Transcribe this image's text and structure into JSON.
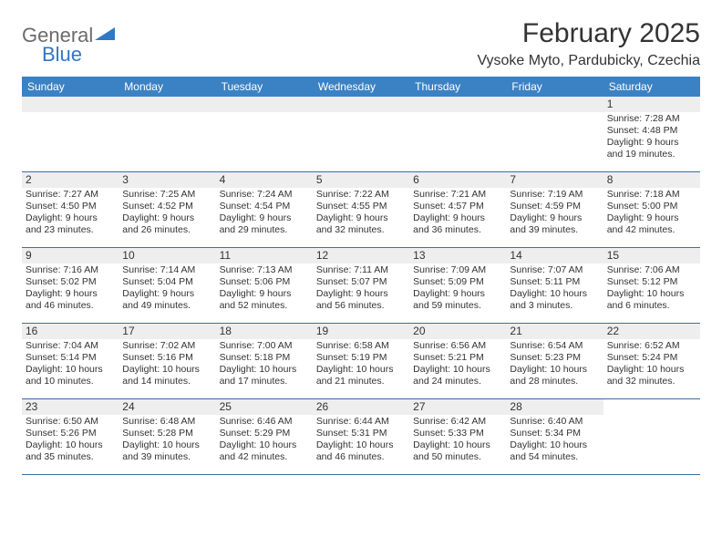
{
  "brand": {
    "general": "General",
    "blue": "Blue",
    "tri_color": "#2f78c3"
  },
  "header": {
    "title": "February 2025",
    "location": "Vysoke Myto, Pardubicky, Czechia"
  },
  "colors": {
    "header_bar": "#3b82c4",
    "header_text": "#ffffff",
    "rule": "#3b6fa0",
    "shade": "#eeeeee",
    "text": "#333333",
    "background": "#ffffff"
  },
  "typography": {
    "title_fontsize": 30,
    "location_fontsize": 16,
    "dow_fontsize": 12,
    "daynum_fontsize": 12,
    "cell_fontsize": 10.5
  },
  "days_of_week": [
    "Sunday",
    "Monday",
    "Tuesday",
    "Wednesday",
    "Thursday",
    "Friday",
    "Saturday"
  ],
  "calendar": {
    "type": "table",
    "columns": 7,
    "rows": 5,
    "weeks": [
      [
        null,
        null,
        null,
        null,
        null,
        null,
        {
          "d": "1",
          "sunrise": "7:28 AM",
          "sunset": "4:48 PM",
          "daylight": "9 hours and 19 minutes."
        }
      ],
      [
        {
          "d": "2",
          "sunrise": "7:27 AM",
          "sunset": "4:50 PM",
          "daylight": "9 hours and 23 minutes."
        },
        {
          "d": "3",
          "sunrise": "7:25 AM",
          "sunset": "4:52 PM",
          "daylight": "9 hours and 26 minutes."
        },
        {
          "d": "4",
          "sunrise": "7:24 AM",
          "sunset": "4:54 PM",
          "daylight": "9 hours and 29 minutes."
        },
        {
          "d": "5",
          "sunrise": "7:22 AM",
          "sunset": "4:55 PM",
          "daylight": "9 hours and 32 minutes."
        },
        {
          "d": "6",
          "sunrise": "7:21 AM",
          "sunset": "4:57 PM",
          "daylight": "9 hours and 36 minutes."
        },
        {
          "d": "7",
          "sunrise": "7:19 AM",
          "sunset": "4:59 PM",
          "daylight": "9 hours and 39 minutes."
        },
        {
          "d": "8",
          "sunrise": "7:18 AM",
          "sunset": "5:00 PM",
          "daylight": "9 hours and 42 minutes."
        }
      ],
      [
        {
          "d": "9",
          "sunrise": "7:16 AM",
          "sunset": "5:02 PM",
          "daylight": "9 hours and 46 minutes."
        },
        {
          "d": "10",
          "sunrise": "7:14 AM",
          "sunset": "5:04 PM",
          "daylight": "9 hours and 49 minutes."
        },
        {
          "d": "11",
          "sunrise": "7:13 AM",
          "sunset": "5:06 PM",
          "daylight": "9 hours and 52 minutes."
        },
        {
          "d": "12",
          "sunrise": "7:11 AM",
          "sunset": "5:07 PM",
          "daylight": "9 hours and 56 minutes."
        },
        {
          "d": "13",
          "sunrise": "7:09 AM",
          "sunset": "5:09 PM",
          "daylight": "9 hours and 59 minutes."
        },
        {
          "d": "14",
          "sunrise": "7:07 AM",
          "sunset": "5:11 PM",
          "daylight": "10 hours and 3 minutes."
        },
        {
          "d": "15",
          "sunrise": "7:06 AM",
          "sunset": "5:12 PM",
          "daylight": "10 hours and 6 minutes."
        }
      ],
      [
        {
          "d": "16",
          "sunrise": "7:04 AM",
          "sunset": "5:14 PM",
          "daylight": "10 hours and 10 minutes."
        },
        {
          "d": "17",
          "sunrise": "7:02 AM",
          "sunset": "5:16 PM",
          "daylight": "10 hours and 14 minutes."
        },
        {
          "d": "18",
          "sunrise": "7:00 AM",
          "sunset": "5:18 PM",
          "daylight": "10 hours and 17 minutes."
        },
        {
          "d": "19",
          "sunrise": "6:58 AM",
          "sunset": "5:19 PM",
          "daylight": "10 hours and 21 minutes."
        },
        {
          "d": "20",
          "sunrise": "6:56 AM",
          "sunset": "5:21 PM",
          "daylight": "10 hours and 24 minutes."
        },
        {
          "d": "21",
          "sunrise": "6:54 AM",
          "sunset": "5:23 PM",
          "daylight": "10 hours and 28 minutes."
        },
        {
          "d": "22",
          "sunrise": "6:52 AM",
          "sunset": "5:24 PM",
          "daylight": "10 hours and 32 minutes."
        }
      ],
      [
        {
          "d": "23",
          "sunrise": "6:50 AM",
          "sunset": "5:26 PM",
          "daylight": "10 hours and 35 minutes."
        },
        {
          "d": "24",
          "sunrise": "6:48 AM",
          "sunset": "5:28 PM",
          "daylight": "10 hours and 39 minutes."
        },
        {
          "d": "25",
          "sunrise": "6:46 AM",
          "sunset": "5:29 PM",
          "daylight": "10 hours and 42 minutes."
        },
        {
          "d": "26",
          "sunrise": "6:44 AM",
          "sunset": "5:31 PM",
          "daylight": "10 hours and 46 minutes."
        },
        {
          "d": "27",
          "sunrise": "6:42 AM",
          "sunset": "5:33 PM",
          "daylight": "10 hours and 50 minutes."
        },
        {
          "d": "28",
          "sunrise": "6:40 AM",
          "sunset": "5:34 PM",
          "daylight": "10 hours and 54 minutes."
        },
        null
      ]
    ]
  },
  "labels": {
    "sunrise_prefix": "Sunrise: ",
    "sunset_prefix": "Sunset: ",
    "daylight_prefix": "Daylight: "
  }
}
